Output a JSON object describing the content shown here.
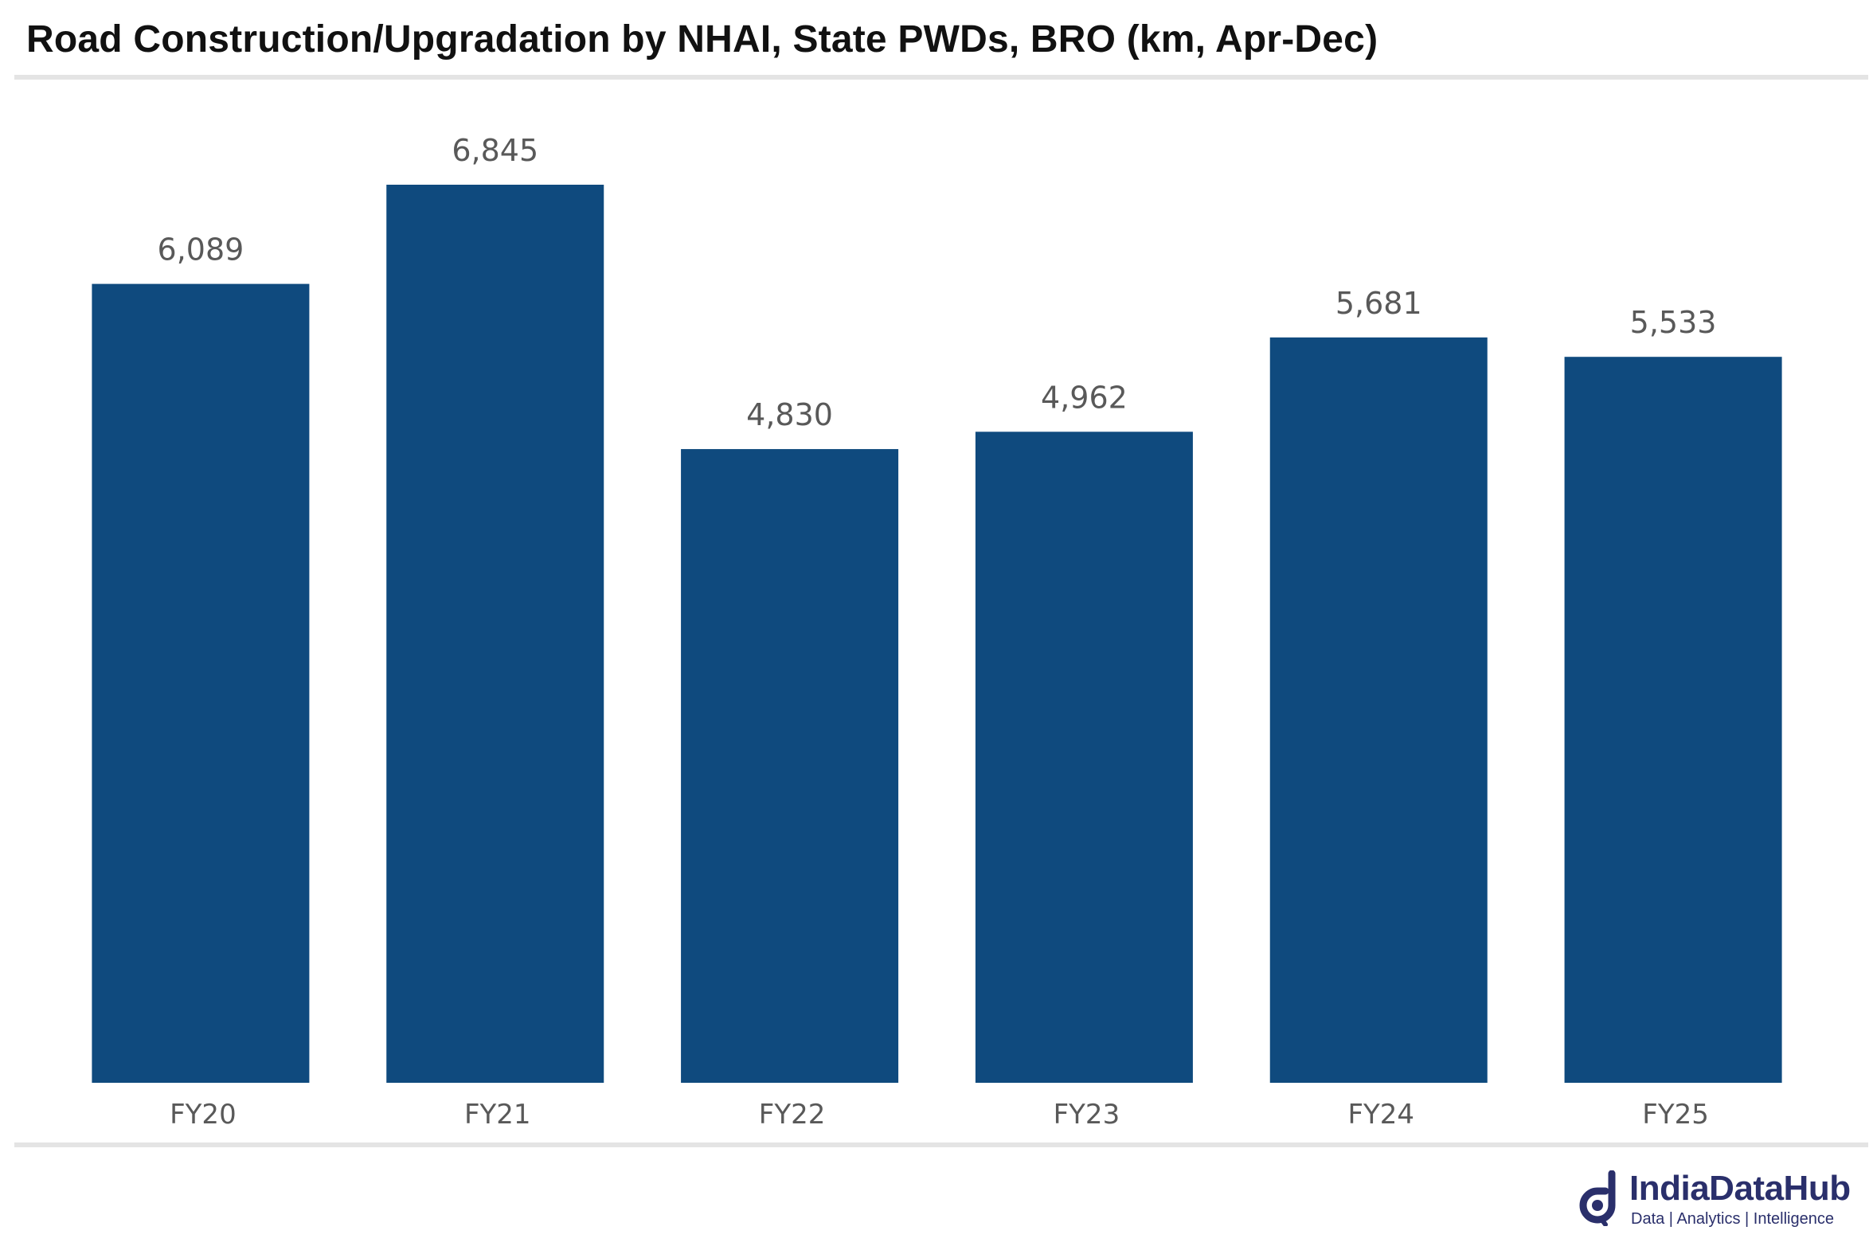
{
  "chart_data": {
    "type": "bar",
    "title": "Road Construction/Upgradation by NHAI, State PWDs, BRO (km, Apr-Dec)",
    "categories": [
      "FY20",
      "FY21",
      "FY22",
      "FY23",
      "FY24",
      "FY25"
    ],
    "values": [
      6089,
      6845,
      4830,
      4962,
      5681,
      5533
    ],
    "value_labels": [
      "6,089",
      "6,845",
      "4,830",
      "4,962",
      "5,681",
      "5,533"
    ],
    "xlabel": "",
    "ylabel": "",
    "ylim": [
      0,
      6845
    ],
    "grid": false,
    "legend": "none",
    "bar_color": "#0f4a7e"
  },
  "brand": {
    "name": "IndiaDataHub",
    "tagline": "Data | Analytics | Intelligence",
    "color": "#2a2f6b"
  }
}
